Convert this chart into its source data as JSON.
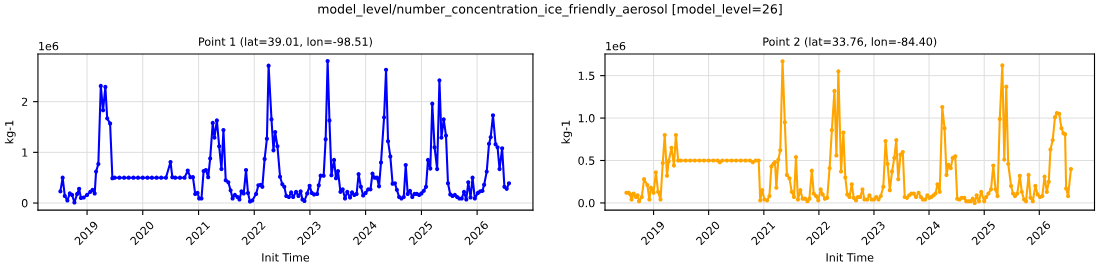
{
  "chart_data": [
    {
      "type": "line",
      "title": "Point 1 (lat=39.01, lon=-98.51)",
      "xlabel": "Init Time",
      "ylabel": "kg-1",
      "annotations": [
        "model_level/number_concentration_ice_friendly_aerosol [model_level=26]",
        "1e6"
      ],
      "grid": true,
      "marker": "circle",
      "line_style": "solid",
      "xlim": [
        "2018-02-13",
        "2027-01-02"
      ],
      "xticks": [
        {
          "value": "2019-01-01",
          "label": "2019"
        },
        {
          "value": "2020-01-01",
          "label": "2020"
        },
        {
          "value": "2021-01-01",
          "label": "2021"
        },
        {
          "value": "2022-01-01",
          "label": "2022"
        },
        {
          "value": "2023-01-01",
          "label": "2023"
        },
        {
          "value": "2024-01-01",
          "label": "2024"
        },
        {
          "value": "2025-01-01",
          "label": "2025"
        },
        {
          "value": "2026-01-01",
          "label": "2026"
        }
      ],
      "ylim": [
        -0.14,
        2.94
      ],
      "yticks": [
        0,
        1,
        2
      ],
      "series": [
        {
          "color": "#0000ff",
          "x": [
            "2018-07-10",
            "2018-07-25",
            "2018-08-08",
            "2018-08-25",
            "2018-09-10",
            "2018-09-25",
            "2018-10-10",
            "2018-10-28",
            "2018-11-10",
            "2018-11-22",
            "2018-12-10",
            "2019-01-01",
            "2019-01-22",
            "2019-02-06",
            "2019-02-20",
            "2019-03-01",
            "2019-03-16",
            "2019-04-01",
            "2019-04-16",
            "2019-05-01",
            "2019-05-13",
            "2019-06-01",
            "2019-06-16",
            "2019-07-01",
            "2019-08-01",
            "2019-09-01",
            "2019-10-01",
            "2019-11-01",
            "2019-12-01",
            "2020-01-01",
            "2020-02-01",
            "2020-03-01",
            "2020-04-01",
            "2020-05-01",
            "2020-06-01",
            "2020-07-01",
            "2020-07-13",
            "2020-08-01",
            "2020-09-01",
            "2020-10-01",
            "2020-10-22",
            "2020-11-08",
            "2020-11-25",
            "2020-12-10",
            "2020-12-25",
            "2021-01-05",
            "2021-01-20",
            "2021-02-03",
            "2021-02-18",
            "2021-03-05",
            "2021-03-18",
            "2021-04-04",
            "2021-04-15",
            "2021-05-01",
            "2021-05-16",
            "2021-05-31",
            "2021-06-13",
            "2021-06-28",
            "2021-07-15",
            "2021-07-30",
            "2021-08-12",
            "2021-08-27",
            "2021-09-13",
            "2021-09-26",
            "2021-10-09",
            "2021-10-24",
            "2021-11-08",
            "2021-11-21",
            "2021-12-04",
            "2021-12-19",
            "2022-01-13",
            "2022-01-28",
            "2022-02-12",
            "2022-02-23",
            "2022-03-10",
            "2022-03-25",
            "2022-04-05",
            "2022-04-24",
            "2022-05-07",
            "2022-05-18",
            "2022-06-02",
            "2022-06-19",
            "2022-07-04",
            "2022-07-17",
            "2022-07-30",
            "2022-08-16",
            "2022-08-31",
            "2022-09-13",
            "2022-10-02",
            "2022-10-18",
            "2022-11-01",
            "2022-11-13",
            "2022-11-26",
            "2022-12-14",
            "2022-12-30",
            "2023-01-13",
            "2023-01-28",
            "2023-02-17",
            "2023-02-28",
            "2023-03-12",
            "2023-04-01",
            "2023-04-14",
            "2023-04-27",
            "2023-05-09",
            "2023-05-22",
            "2023-06-08",
            "2023-06-21",
            "2023-07-04",
            "2023-07-20",
            "2023-08-04",
            "2023-08-19",
            "2023-09-03",
            "2023-09-21",
            "2023-10-04",
            "2023-10-19",
            "2023-11-03",
            "2023-11-16",
            "2023-12-01",
            "2023-12-16",
            "2024-01-01",
            "2024-01-18",
            "2024-02-02",
            "2024-02-15",
            "2024-03-01",
            "2024-03-16",
            "2024-03-29",
            "2024-04-11",
            "2024-05-01",
            "2024-05-14",
            "2024-05-27",
            "2024-06-11",
            "2024-06-26",
            "2024-07-11",
            "2024-07-24",
            "2024-08-08",
            "2024-08-23",
            "2024-09-07",
            "2024-09-20",
            "2024-10-03",
            "2024-10-18",
            "2024-11-02",
            "2024-11-17",
            "2024-12-02",
            "2024-12-17",
            "2025-01-01",
            "2025-01-16",
            "2025-01-31",
            "2025-02-13",
            "2025-02-28",
            "2025-03-13",
            "2025-03-28",
            "2025-04-14",
            "2025-04-29",
            "2025-05-12",
            "2025-05-27",
            "2025-06-11",
            "2025-06-24",
            "2025-07-09",
            "2025-07-24",
            "2025-08-08",
            "2025-08-23",
            "2025-09-07",
            "2025-09-22",
            "2025-10-07",
            "2025-10-22",
            "2025-11-04",
            "2025-11-19",
            "2025-12-02",
            "2025-12-17",
            "2026-01-06",
            "2026-01-21",
            "2026-02-05",
            "2026-02-16",
            "2026-03-05",
            "2026-03-20",
            "2026-03-31",
            "2026-04-15",
            "2026-05-02",
            "2026-05-15",
            "2026-05-28",
            "2026-06-14",
            "2026-06-29",
            "2026-07-14",
            "2026-07-29"
          ],
          "values": [
            0.23,
            0.5,
            0.14,
            0.05,
            0.19,
            0.16,
            0.01,
            0.18,
            0.28,
            0.1,
            0.11,
            0.16,
            0.22,
            0.26,
            0.19,
            0.62,
            0.77,
            2.31,
            1.83,
            2.29,
            1.67,
            1.57,
            0.49,
            0.5,
            0.5,
            0.5,
            0.5,
            0.5,
            0.5,
            0.5,
            0.5,
            0.5,
            0.5,
            0.5,
            0.5,
            0.81,
            0.51,
            0.5,
            0.5,
            0.5,
            0.64,
            0.51,
            0.51,
            0.18,
            0.2,
            0.09,
            0.09,
            0.63,
            0.65,
            0.51,
            0.88,
            1.58,
            1.29,
            1.63,
            1.12,
            0.67,
            1.44,
            0.45,
            0.41,
            0.25,
            0.09,
            0.16,
            0.12,
            0.07,
            0.23,
            0.19,
            0.65,
            0.2,
            0.03,
            0.05,
            0.18,
            0.35,
            0.36,
            0.32,
            0.87,
            1.27,
            2.71,
            1.65,
            1.04,
            1.4,
            1.12,
            0.52,
            0.37,
            0.32,
            0.14,
            0.12,
            0.21,
            0.12,
            0.22,
            0.14,
            0.23,
            0.07,
            0.04,
            0.19,
            0.34,
            0.2,
            0.17,
            0.18,
            0.35,
            0.54,
            0.54,
            1.26,
            2.8,
            1.63,
            0.55,
            0.85,
            0.49,
            0.63,
            0.22,
            0.27,
            0.09,
            0.22,
            0.11,
            0.21,
            0.16,
            0.18,
            0.57,
            0.32,
            0.15,
            0.2,
            0.27,
            0.27,
            0.58,
            0.5,
            0.5,
            0.33,
            0.8,
            1.69,
            2.63,
            1.22,
            0.92,
            0.38,
            0.39,
            0.26,
            0.12,
            0.09,
            0.12,
            0.75,
            0.18,
            0.24,
            0.12,
            0.18,
            0.18,
            0.16,
            0.19,
            0.24,
            0.32,
            0.85,
            0.68,
            1.96,
            1.1,
            0.67,
            2.42,
            1.29,
            1.65,
            1.33,
            0.39,
            0.17,
            0.14,
            0.16,
            0.12,
            0.09,
            0.09,
            0.22,
            0.07,
            0.41,
            0.11,
            0.5,
            0.09,
            0.2,
            0.23,
            0.24,
            0.36,
            0.62,
            1.17,
            1.3,
            1.73,
            1.16,
            1.1,
            0.67,
            1.08,
            0.32,
            0.28,
            0.39
          ]
        }
      ]
    },
    {
      "type": "line",
      "title": "Point 2 (lat=33.76, lon=-84.40)",
      "xlabel": "Init Time",
      "ylabel": "kg-1",
      "annotations": [
        "1e6"
      ],
      "grid": true,
      "marker": "circle",
      "line_style": "solid",
      "xlim": [
        "2018-02-13",
        "2027-01-02"
      ],
      "xticks": [
        {
          "value": "2019-01-01",
          "label": "2019"
        },
        {
          "value": "2020-01-01",
          "label": "2020"
        },
        {
          "value": "2021-01-01",
          "label": "2021"
        },
        {
          "value": "2022-01-01",
          "label": "2022"
        },
        {
          "value": "2023-01-01",
          "label": "2023"
        },
        {
          "value": "2024-01-01",
          "label": "2024"
        },
        {
          "value": "2025-01-01",
          "label": "2025"
        },
        {
          "value": "2026-01-01",
          "label": "2026"
        }
      ],
      "ylim": [
        -0.085,
        1.755
      ],
      "yticks": [
        {
          "value": 0,
          "label": "0.0"
        },
        0.5,
        {
          "value": 1,
          "label": "1.0"
        },
        1.5
      ],
      "series": [
        {
          "color": "#ffa500",
          "x": [
            "2018-07-05",
            "2018-07-20",
            "2018-07-31",
            "2018-08-08",
            "2018-08-22",
            "2018-09-06",
            "2018-09-17",
            "2018-09-27",
            "2018-10-15",
            "2018-10-30",
            "2018-11-21",
            "2018-12-04",
            "2018-12-15",
            "2019-01-01",
            "2019-01-16",
            "2019-01-31",
            "2019-02-16",
            "2019-03-03",
            "2019-03-16",
            "2019-03-31",
            "2019-04-11",
            "2019-04-30",
            "2019-05-16",
            "2019-05-29",
            "2019-06-13",
            "2019-07-01",
            "2019-08-01",
            "2019-09-01",
            "2019-10-01",
            "2019-11-01",
            "2019-12-01",
            "2020-01-01",
            "2020-02-01",
            "2020-03-01",
            "2020-03-15",
            "2020-04-01",
            "2020-05-01",
            "2020-06-01",
            "2020-07-01",
            "2020-08-01",
            "2020-09-01",
            "2020-10-01",
            "2020-10-20",
            "2020-11-08",
            "2020-11-28",
            "2020-12-08",
            "2020-12-21",
            "2021-01-05",
            "2021-01-23",
            "2021-02-07",
            "2021-02-20",
            "2021-03-05",
            "2021-03-16",
            "2021-03-25",
            "2021-04-07",
            "2021-04-20",
            "2021-05-05",
            "2021-05-20",
            "2021-06-03",
            "2021-06-20",
            "2021-07-05",
            "2021-07-20",
            "2021-08-02",
            "2021-08-15",
            "2021-08-31",
            "2021-09-15",
            "2021-10-02",
            "2021-10-17",
            "2021-10-30",
            "2021-11-15",
            "2021-11-28",
            "2021-12-13",
            "2021-12-28",
            "2022-01-13",
            "2022-01-26",
            "2022-02-10",
            "2022-02-25",
            "2022-03-13",
            "2022-03-28",
            "2022-04-14",
            "2022-04-27",
            "2022-05-10",
            "2022-05-28",
            "2022-06-12",
            "2022-06-25",
            "2022-07-08",
            "2022-07-23",
            "2022-08-07",
            "2022-08-20",
            "2022-09-04",
            "2022-09-17",
            "2022-10-02",
            "2022-10-17",
            "2022-10-30",
            "2022-11-17",
            "2022-12-02",
            "2022-12-17",
            "2023-01-01",
            "2023-01-16",
            "2023-01-31",
            "2023-02-15",
            "2023-03-04",
            "2023-03-19",
            "2023-04-01",
            "2023-04-16",
            "2023-05-01",
            "2023-05-16",
            "2023-05-29",
            "2023-06-11",
            "2023-06-26",
            "2023-07-11",
            "2023-07-24",
            "2023-08-08",
            "2023-08-23",
            "2023-09-07",
            "2023-09-22",
            "2023-10-07",
            "2023-10-24",
            "2023-11-08",
            "2023-11-21",
            "2023-12-06",
            "2023-12-21",
            "2024-01-03",
            "2024-01-16",
            "2024-01-31",
            "2024-02-13",
            "2024-02-26",
            "2024-03-12",
            "2024-03-29",
            "2024-04-13",
            "2024-04-26",
            "2024-05-09",
            "2024-05-24",
            "2024-06-06",
            "2024-06-23",
            "2024-07-06",
            "2024-07-21",
            "2024-08-05",
            "2024-08-22",
            "2024-09-04",
            "2024-09-19",
            "2024-10-04",
            "2024-10-17",
            "2024-10-30",
            "2024-11-12",
            "2024-11-27",
            "2024-12-12",
            "2025-01-01",
            "2025-01-14",
            "2025-01-29",
            "2025-02-15",
            "2025-03-02",
            "2025-03-17",
            "2025-03-30",
            "2025-04-14",
            "2025-05-01",
            "2025-05-14",
            "2025-05-27",
            "2025-06-09",
            "2025-06-28",
            "2025-07-11",
            "2025-07-24",
            "2025-08-08",
            "2025-08-25",
            "2025-09-07",
            "2025-09-22",
            "2025-10-05",
            "2025-10-22",
            "2025-11-04",
            "2025-11-19",
            "2025-12-06",
            "2025-12-21",
            "2026-01-06",
            "2026-01-21",
            "2026-02-05",
            "2026-02-20",
            "2026-03-05",
            "2026-03-16",
            "2026-03-31",
            "2026-04-15",
            "2026-04-28",
            "2026-05-13",
            "2026-05-28",
            "2026-06-10",
            "2026-06-21",
            "2026-06-28",
            "2026-07-11",
            "2026-07-30"
          ],
          "values": [
            0.12,
            0.12,
            0.1,
            0.04,
            0.11,
            0.07,
            0.09,
            0.02,
            0.07,
            0.28,
            0.21,
            0.04,
            0.18,
            0.12,
            0.36,
            0.13,
            0.04,
            0.47,
            0.8,
            0.32,
            0.49,
            0.65,
            0.44,
            0.8,
            0.5,
            0.5,
            0.5,
            0.5,
            0.5,
            0.5,
            0.5,
            0.5,
            0.5,
            0.5,
            0.48,
            0.5,
            0.5,
            0.5,
            0.5,
            0.5,
            0.5,
            0.5,
            0.48,
            0.5,
            0.5,
            0.03,
            0.15,
            0.04,
            0.03,
            0.08,
            0.43,
            0.46,
            0.48,
            0.18,
            0.51,
            0.62,
            1.67,
            0.95,
            0.33,
            0.29,
            0.13,
            0.07,
            0.54,
            0.04,
            0.15,
            0.05,
            0.05,
            0.02,
            0.05,
            0.38,
            0.11,
            0.08,
            0.03,
            0.16,
            0.1,
            0.05,
            0.06,
            0.41,
            0.86,
            1.32,
            0.56,
            1.55,
            0.37,
            0.83,
            0.3,
            0.1,
            0.07,
            0.22,
            0.06,
            0.03,
            0.07,
            0.07,
            0.16,
            0.04,
            0.04,
            0.09,
            0.04,
            0.04,
            0.07,
            0.04,
            0.08,
            0.19,
            0.73,
            0.46,
            0.15,
            0.37,
            0.53,
            0.74,
            0.28,
            0.57,
            0.6,
            0.07,
            0.06,
            0.09,
            0.11,
            0.11,
            0.07,
            0.12,
            0.07,
            0.04,
            0.04,
            0.09,
            0.06,
            0.07,
            0.09,
            0.11,
            0.22,
            0.13,
            1.13,
            0.88,
            0.33,
            0.45,
            0.41,
            0.53,
            0.55,
            0.05,
            0.04,
            0.06,
            0.06,
            0.02,
            0.02,
            0.02,
            0.05,
            0.0,
            0.09,
            0.02,
            0.13,
            0.02,
            0.07,
            0.11,
            0.16,
            0.44,
            0.16,
            0.08,
            0.99,
            1.62,
            0.51,
            1.37,
            0.46,
            0.2,
            0.11,
            0.08,
            0.11,
            0.32,
            0.13,
            0.04,
            0.02,
            0.33,
            0.06,
            0.02,
            0.2,
            0.1,
            0.07,
            0.08,
            0.31,
            0.13,
            0.25,
            0.63,
            0.74,
            1.01,
            1.06,
            1.05,
            0.88,
            0.82,
            0.81,
            0.17,
            0.08,
            0.4
          ]
        }
      ]
    }
  ]
}
